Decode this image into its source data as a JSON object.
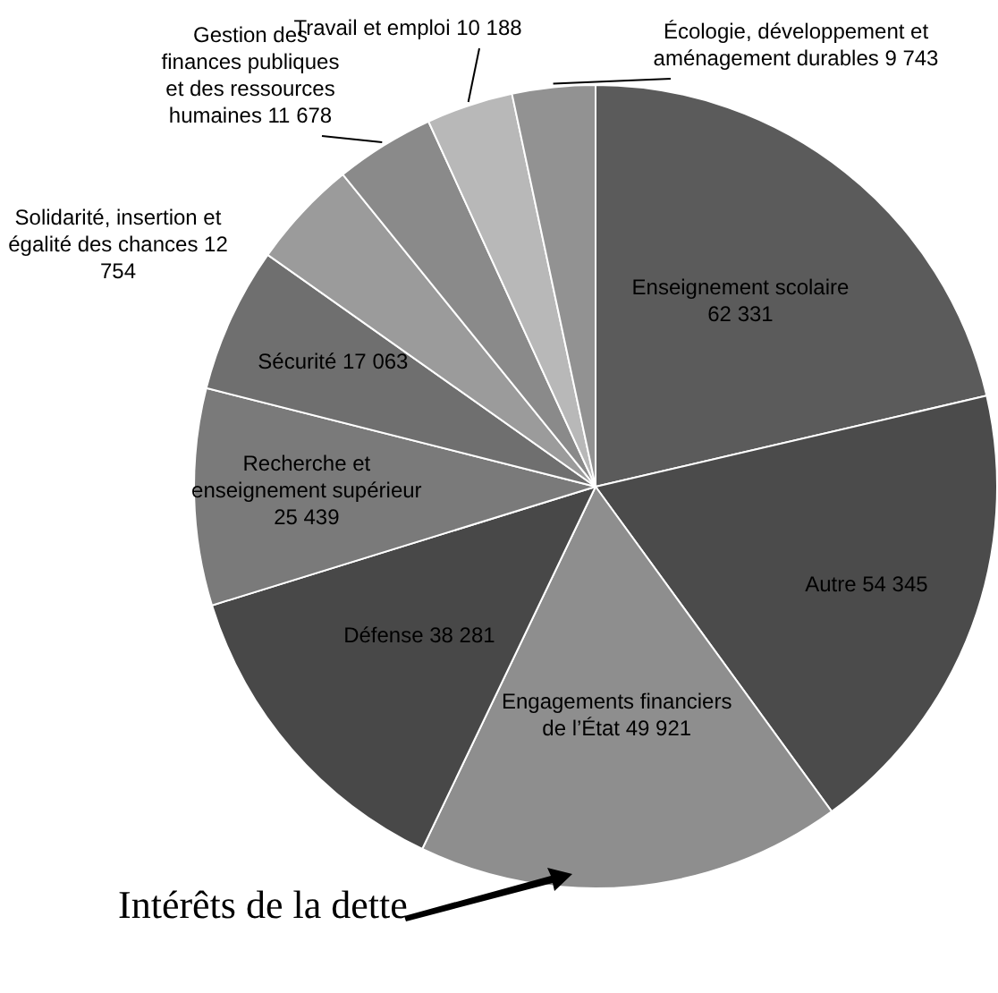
{
  "chart_data": {
    "type": "pie",
    "categories": [
      "Enseignement scolaire",
      "Autre",
      "Engagements financiers de l’État",
      "Défense",
      "Recherche et enseignement supérieur",
      "Sécurité",
      "Solidarité, insertion et égalité des chances",
      "Gestion des finances publiques et des ressources humaines",
      "Travail et emploi",
      "Écologie, développement et aménagement durables"
    ],
    "values": [
      62331,
      54345,
      49921,
      38281,
      25439,
      17063,
      12754,
      11678,
      10188,
      9743
    ],
    "value_labels": [
      "62 331",
      "54 345",
      "49 921",
      "38 281",
      "25 439",
      "17 063",
      "12 754",
      "11 678",
      "10 188",
      "9 743"
    ],
    "colors": [
      "#5b5b5b",
      "#4b4b4b",
      "#8e8e8e",
      "#484848",
      "#7a7a7a",
      "#6f6f6f",
      "#9b9b9b",
      "#8a8a8a",
      "#b8b8b8",
      "#929292"
    ],
    "annotations": [
      "Intérêts de la dette"
    ]
  }
}
